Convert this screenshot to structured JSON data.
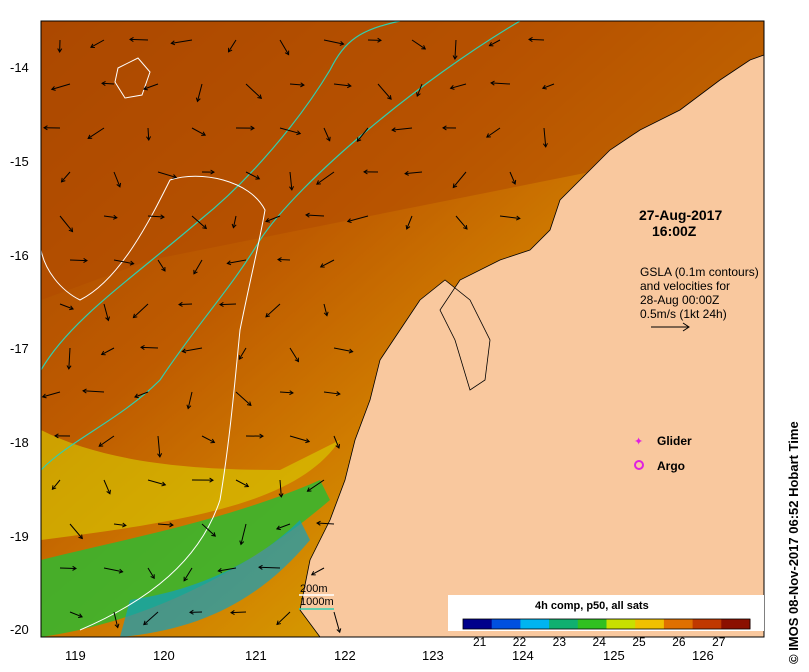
{
  "map": {
    "lat_ticks": [
      "-14",
      "-15",
      "-16",
      "-17",
      "-18",
      "-19",
      "-20"
    ],
    "lon_ticks": [
      "119",
      "120",
      "121",
      "122",
      "123",
      "124",
      "125",
      "126"
    ],
    "lon_range": [
      118.65,
      126.75
    ],
    "lat_range": [
      -20.15,
      -13.6
    ],
    "timestamp_date": "27-Aug-2017",
    "timestamp_time": "16:00Z",
    "gsla_lines": [
      "GSLA (0.1m contours)",
      "and velocities for",
      "28-Aug 00:00Z",
      "0.5m/s (1kt 24h)"
    ],
    "legend_glider": "Glider",
    "legend_argo": "Argo",
    "glider_color": "#e020e0",
    "argo_color": "#e020e0",
    "isobath_200": "200m",
    "isobath_1000": "1000m",
    "isobath_200_color": "#ffffff",
    "isobath_1000_color": "#30d0b0",
    "land_color": "#f9c89e"
  },
  "colorbar": {
    "title": "4h comp, p50, all sats",
    "ticks": [
      "21",
      "22",
      "23",
      "24",
      "25",
      "26",
      "27"
    ],
    "range": [
      20.6,
      27.8
    ],
    "colors": [
      "#00008b",
      "#0050e0",
      "#00b4f0",
      "#10b070",
      "#30c020",
      "#c8e000",
      "#f0c000",
      "#e07000",
      "#c03800",
      "#8b1000"
    ]
  },
  "credit": "© IMOS 08-Nov-2017 06:52 Hobart Time"
}
